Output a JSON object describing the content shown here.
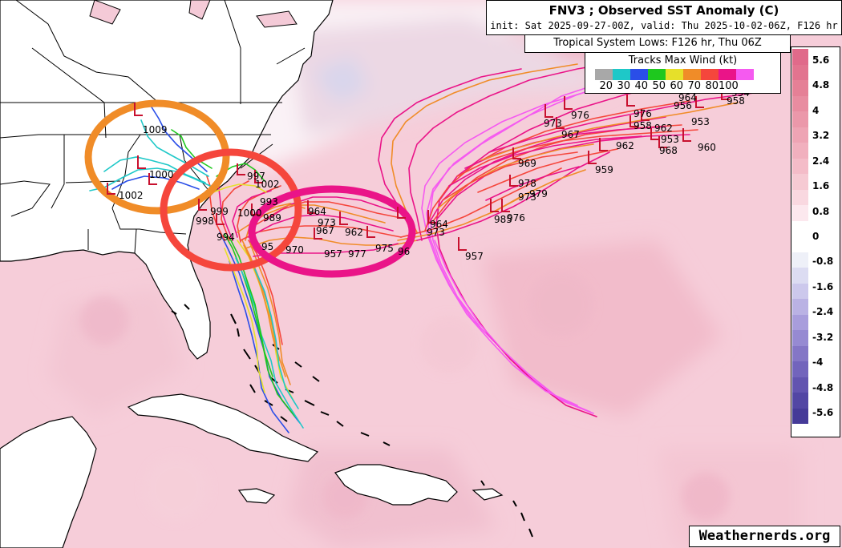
{
  "title": {
    "line1": "FNV3 ; Observed SST Anomaly (C)",
    "line2": "init: Sat 2025-09-27-00Z, valid: Thu 2025-10-02-06Z, F126 hr"
  },
  "lows_label": "Tropical System Lows: F126 hr, Thu 06Z",
  "wind_legend": {
    "title": "Tracks Max Wind (kt)",
    "colors": [
      "#a8a8a8",
      "#1ec8c8",
      "#2a4ee8",
      "#1ec81e",
      "#e6e02a",
      "#f08c28",
      "#f5463c",
      "#ea1488",
      "#f55af0"
    ],
    "ticks": [
      "20",
      "30",
      "40",
      "50",
      "60",
      "70",
      "80",
      "100"
    ]
  },
  "sst_scale": {
    "colors": [
      "#e06a8a",
      "#e2748f",
      "#e58096",
      "#e88ca0",
      "#eb98aa",
      "#eea4b4",
      "#f1b0be",
      "#f4bcc8",
      "#f6cad3",
      "#f9d8e0",
      "#fce8ee",
      "#ffffff",
      "#ffffff",
      "#eef0f8",
      "#dcdcf2",
      "#ccc8ec",
      "#bab2e4",
      "#a89ddc",
      "#968ad2",
      "#8476c6",
      "#7264bc",
      "#6254b0",
      "#5246a4",
      "#453a98"
    ],
    "labels": [
      "5.6",
      "4.8",
      "4",
      "3.2",
      "2.4",
      "1.6",
      "0.8",
      "0",
      "-0.8",
      "-1.6",
      "-2.4",
      "-3.2",
      "-4",
      "-4.8",
      "-5.6"
    ]
  },
  "pressure_labels": [
    "1009",
    "1002",
    "1000",
    "997",
    "1002",
    "993",
    "1000",
    "998",
    "999",
    "994",
    "989",
    "964",
    "973",
    "962",
    "967",
    "957",
    "977",
    "975",
    "96",
    "95",
    "970",
    "976",
    "973",
    "967",
    "964",
    "973",
    "985",
    "976",
    "979",
    "973",
    "969",
    "959",
    "978",
    "962",
    "953",
    "968",
    "960",
    "957",
    "976",
    "958",
    "962",
    "953",
    "958",
    "964",
    "956",
    "954"
  ],
  "credit": "Weathernerds.org"
}
